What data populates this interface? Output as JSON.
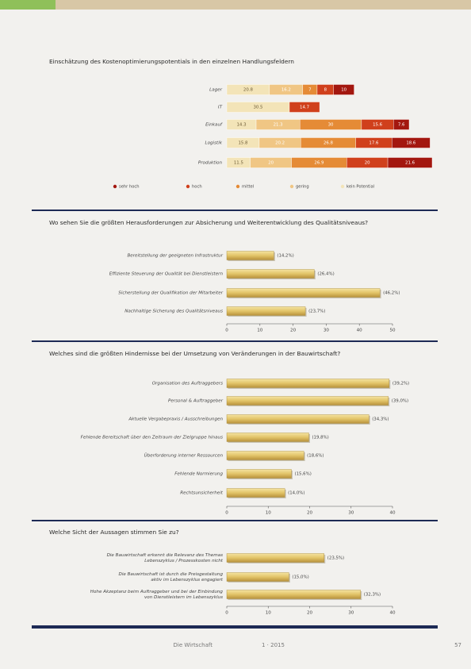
{
  "chart_data": [
    {
      "type": "stacked-bar",
      "title": "Einschätzung des Kostenoptimierungspotentials in den einzelnen Handlungsfeldern",
      "categories": [
        "Lager",
        "IT",
        "Einkauf",
        "Logistik",
        "Produktion"
      ],
      "series": [
        {
          "name": "kein Potential",
          "color": "#f3e4b8",
          "values": [
            20.8,
            30.5,
            14.3,
            15.8,
            11.5
          ]
        },
        {
          "name": "gering",
          "color": "#f0c684",
          "values": [
            16.2,
            null,
            21.3,
            20.2,
            20.0
          ]
        },
        {
          "name": "mittel",
          "color": "#e58b36",
          "values": [
            7.0,
            null,
            30.0,
            26.8,
            26.9
          ]
        },
        {
          "name": "hoch",
          "color": "#d0401c",
          "values": [
            8.0,
            14.7,
            15.6,
            17.6,
            20.0
          ]
        },
        {
          "name": "sehr hoch",
          "color": "#a3170f",
          "values": [
            10.0,
            null,
            7.6,
            18.6,
            21.6
          ]
        }
      ]
    },
    {
      "type": "bar",
      "title": "Wo sehen Sie die größten Herausforderungen zur Absicherung und Weiterentwicklung des Qualitätsniveaus?",
      "categories": [
        "Bereitstellung der geeigneten Infrastruktur",
        "Effiziente Steuerung der Qualität bei Dienstleistern",
        "Sicherstellung der Qualifikation der Mitarbeiter",
        "Nachhaltige Sicherung des Qualitätsniveaus"
      ],
      "values": [
        14.2,
        26.4,
        46.2,
        23.7
      ],
      "value_labels": [
        "(14,2%)",
        "(26,4%)",
        "(46,2%)",
        "(23,7%)"
      ],
      "xlim": [
        0,
        50
      ],
      "xticks": [
        0,
        10,
        20,
        30,
        40,
        50
      ]
    },
    {
      "type": "bar",
      "title": "Welches sind die größten Hindernisse bei der Umsetzung von Veränderungen in der Bauwirtschaft?",
      "categories": [
        "Organisation des Auftraggebers",
        "Personal & Auftraggeber",
        "Aktuelle Vergabepraxis / Ausschreibungen",
        "Fehlende Bereitschaft über den Zeitraum der Zielgruppe hinaus",
        "Überforderung interner Ressourcen",
        "Fehlende Normierung",
        "Rechtsunsicherheit"
      ],
      "values": [
        39.2,
        39.0,
        34.3,
        19.8,
        18.6,
        15.6,
        14.0
      ],
      "value_labels": [
        "(39,2%)",
        "(39,0%)",
        "(34,3%)",
        "(19,8%)",
        "(18,6%)",
        "(15,6%)",
        "(14,0%)"
      ],
      "xlim": [
        0,
        40
      ],
      "xticks": [
        0,
        10,
        20,
        30,
        40
      ]
    },
    {
      "type": "bar",
      "title": "Welche Sicht der Aussagen stimmen Sie zu?",
      "categories": [
        [
          "Die Bauwirtschaft erkennt die Relevanz des Themas",
          "Lebenszyklus / Prozesskosten nicht"
        ],
        [
          "Die Bauwirtschaft ist durch die Preisgestaltung",
          "aktiv im Lebenszyklus engagiert"
        ],
        [
          "Hohe Akzeptanz beim Auftraggeber und bei der Einbindung",
          "von Dienstleistern im Lebenszyklus"
        ]
      ],
      "values": [
        23.5,
        15.0,
        32.3
      ],
      "value_labels": [
        "(23,5%)",
        "(15,0%)",
        "(32,3%)"
      ],
      "xlim": [
        0,
        40
      ],
      "xticks": [
        0,
        10,
        20,
        30,
        40
      ]
    }
  ],
  "footer": {
    "publication": "Die Wirtschaft",
    "issue": "1 · 2015",
    "page": "57"
  }
}
